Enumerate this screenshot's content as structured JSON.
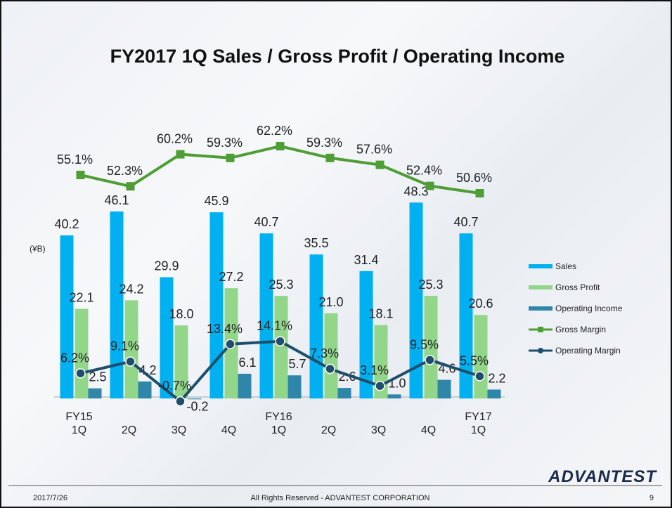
{
  "chart_data": {
    "type": "bar",
    "title": "FY2017 1Q Sales / Gross Profit / Operating Income",
    "unit": "(¥B)",
    "categories": [
      "FY15\n1Q",
      "2Q",
      "3Q",
      "4Q",
      "FY16\n1Q",
      "2Q",
      "3Q",
      "4Q",
      "FY17\n1Q"
    ],
    "ylim": [
      -5,
      70
    ],
    "legend": "right",
    "series": [
      {
        "name": "Sales",
        "type": "bar",
        "color": "#00b0f0",
        "values": [
          40.2,
          46.1,
          29.9,
          45.9,
          40.7,
          35.5,
          31.4,
          48.3,
          40.7
        ],
        "value_labels": [
          "40.2",
          "46.1",
          "29.9",
          "45.9",
          "40.7",
          "35.5",
          "31.4",
          "48.3",
          "40.7"
        ]
      },
      {
        "name": "Gross Profit",
        "type": "bar",
        "color": "#92d68a",
        "values": [
          22.1,
          24.2,
          18,
          27.2,
          25.3,
          21,
          18.1,
          25.3,
          20.6
        ],
        "value_labels": [
          "22.1",
          "24.2",
          "18.0",
          "27.2",
          "25.3",
          "21.0",
          "18.1",
          "25.3",
          "20.6"
        ]
      },
      {
        "name": "Operating Income",
        "type": "bar",
        "color": "#2f86a8",
        "values": [
          2.5,
          4.2,
          -0.2,
          6.1,
          5.7,
          2.6,
          1,
          4.6,
          2.2
        ],
        "value_labels": [
          "2.5",
          "4.2",
          "-0.2",
          "6.1",
          "5.7",
          "2.6",
          "1.0",
          "4.6",
          "2.2"
        ]
      },
      {
        "name": "Gross Margin",
        "type": "line",
        "marker": "square",
        "color": "#4e9d35",
        "values": [
          55.1,
          52.3,
          60.2,
          59.3,
          62.2,
          59.3,
          57.6,
          52.4,
          50.6
        ],
        "value_labels": [
          "55.1%",
          "52.3%",
          "60.2%",
          "59.3%",
          "62.2%",
          "59.3%",
          "57.6%",
          "52.4%",
          "50.6%"
        ]
      },
      {
        "name": "Operating Margin",
        "type": "line",
        "marker": "circle",
        "color": "#1f4e6b",
        "values": [
          6.2,
          9.1,
          -0.7,
          13.4,
          14.1,
          7.3,
          3.1,
          9.5,
          5.5
        ],
        "value_labels": [
          "6.2%",
          "9.1%",
          "-0.7%",
          "13.4%",
          "14.1%",
          "7.3%",
          "3.1%",
          "9.5%",
          "5.5%"
        ]
      }
    ]
  },
  "footer": {
    "date": "2017/7/26",
    "copyright": "All Rights Reserved - ADVANTEST CORPORATION",
    "page": "9",
    "logo": "ADVANTEST"
  }
}
